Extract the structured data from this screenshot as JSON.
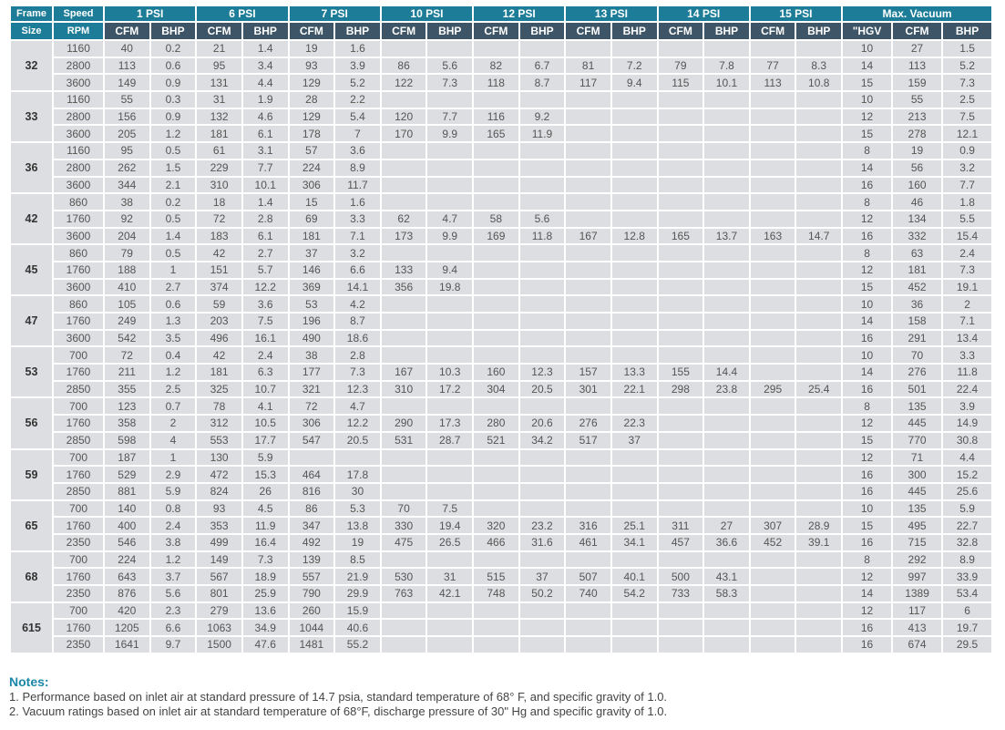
{
  "header": {
    "frame_label": "Frame",
    "frame_sub": "Size",
    "speed_label": "Speed",
    "speed_sub": "RPM",
    "pressure_groups": [
      "1 PSI",
      "6 PSI",
      "7 PSI",
      "10 PSI",
      "12 PSI",
      "13 PSI",
      "14 PSI",
      "15 PSI"
    ],
    "vacuum_group": "Max. Vacuum",
    "cfm": "CFM",
    "bhp": "BHP",
    "hgv": "\"HGV"
  },
  "groups": [
    {
      "frame": "32",
      "rows": [
        {
          "rpm": "1160",
          "cells": [
            "40",
            "0.2",
            "21",
            "1.4",
            "19",
            "1.6",
            "",
            "",
            "",
            "",
            "",
            "",
            "",
            "",
            "",
            "",
            "10",
            "27",
            "1.5"
          ]
        },
        {
          "rpm": "2800",
          "cells": [
            "113",
            "0.6",
            "95",
            "3.4",
            "93",
            "3.9",
            "86",
            "5.6",
            "82",
            "6.7",
            "81",
            "7.2",
            "79",
            "7.8",
            "77",
            "8.3",
            "14",
            "113",
            "5.2"
          ]
        },
        {
          "rpm": "3600",
          "cells": [
            "149",
            "0.9",
            "131",
            "4.4",
            "129",
            "5.2",
            "122",
            "7.3",
            "118",
            "8.7",
            "117",
            "9.4",
            "115",
            "10.1",
            "113",
            "10.8",
            "15",
            "159",
            "7.3"
          ]
        }
      ]
    },
    {
      "frame": "33",
      "rows": [
        {
          "rpm": "1160",
          "cells": [
            "55",
            "0.3",
            "31",
            "1.9",
            "28",
            "2.2",
            "",
            "",
            "",
            "",
            "",
            "",
            "",
            "",
            "",
            "",
            "10",
            "55",
            "2.5"
          ]
        },
        {
          "rpm": "2800",
          "cells": [
            "156",
            "0.9",
            "132",
            "4.6",
            "129",
            "5.4",
            "120",
            "7.7",
            "116",
            "9.2",
            "",
            "",
            "",
            "",
            "",
            "",
            "12",
            "213",
            "7.5"
          ]
        },
        {
          "rpm": "3600",
          "cells": [
            "205",
            "1.2",
            "181",
            "6.1",
            "178",
            "7",
            "170",
            "9.9",
            "165",
            "11.9",
            "",
            "",
            "",
            "",
            "",
            "",
            "15",
            "278",
            "12.1"
          ]
        }
      ]
    },
    {
      "frame": "36",
      "rows": [
        {
          "rpm": "1160",
          "cells": [
            "95",
            "0.5",
            "61",
            "3.1",
            "57",
            "3.6",
            "",
            "",
            "",
            "",
            "",
            "",
            "",
            "",
            "",
            "",
            "8",
            "19",
            "0.9"
          ]
        },
        {
          "rpm": "2800",
          "cells": [
            "262",
            "1.5",
            "229",
            "7.7",
            "224",
            "8.9",
            "",
            "",
            "",
            "",
            "",
            "",
            "",
            "",
            "",
            "",
            "14",
            "56",
            "3.2"
          ]
        },
        {
          "rpm": "3600",
          "cells": [
            "344",
            "2.1",
            "310",
            "10.1",
            "306",
            "11.7",
            "",
            "",
            "",
            "",
            "",
            "",
            "",
            "",
            "",
            "",
            "16",
            "160",
            "7.7"
          ]
        }
      ]
    },
    {
      "frame": "42",
      "rows": [
        {
          "rpm": "860",
          "cells": [
            "38",
            "0.2",
            "18",
            "1.4",
            "15",
            "1.6",
            "",
            "",
            "",
            "",
            "",
            "",
            "",
            "",
            "",
            "",
            "8",
            "46",
            "1.8"
          ]
        },
        {
          "rpm": "1760",
          "cells": [
            "92",
            "0.5",
            "72",
            "2.8",
            "69",
            "3.3",
            "62",
            "4.7",
            "58",
            "5.6",
            "",
            "",
            "",
            "",
            "",
            "",
            "12",
            "134",
            "5.5"
          ]
        },
        {
          "rpm": "3600",
          "cells": [
            "204",
            "1.4",
            "183",
            "6.1",
            "181",
            "7.1",
            "173",
            "9.9",
            "169",
            "11.8",
            "167",
            "12.8",
            "165",
            "13.7",
            "163",
            "14.7",
            "16",
            "332",
            "15.4"
          ]
        }
      ]
    },
    {
      "frame": "45",
      "rows": [
        {
          "rpm": "860",
          "cells": [
            "79",
            "0.5",
            "42",
            "2.7",
            "37",
            "3.2",
            "",
            "",
            "",
            "",
            "",
            "",
            "",
            "",
            "",
            "",
            "8",
            "63",
            "2.4"
          ]
        },
        {
          "rpm": "1760",
          "cells": [
            "188",
            "1",
            "151",
            "5.7",
            "146",
            "6.6",
            "133",
            "9.4",
            "",
            "",
            "",
            "",
            "",
            "",
            "",
            "",
            "12",
            "181",
            "7.3"
          ]
        },
        {
          "rpm": "3600",
          "cells": [
            "410",
            "2.7",
            "374",
            "12.2",
            "369",
            "14.1",
            "356",
            "19.8",
            "",
            "",
            "",
            "",
            "",
            "",
            "",
            "",
            "15",
            "452",
            "19.1"
          ]
        }
      ]
    },
    {
      "frame": "47",
      "rows": [
        {
          "rpm": "860",
          "cells": [
            "105",
            "0.6",
            "59",
            "3.6",
            "53",
            "4.2",
            "",
            "",
            "",
            "",
            "",
            "",
            "",
            "",
            "",
            "",
            "10",
            "36",
            "2"
          ]
        },
        {
          "rpm": "1760",
          "cells": [
            "249",
            "1.3",
            "203",
            "7.5",
            "196",
            "8.7",
            "",
            "",
            "",
            "",
            "",
            "",
            "",
            "",
            "",
            "",
            "14",
            "158",
            "7.1"
          ]
        },
        {
          "rpm": "3600",
          "cells": [
            "542",
            "3.5",
            "496",
            "16.1",
            "490",
            "18.6",
            "",
            "",
            "",
            "",
            "",
            "",
            "",
            "",
            "",
            "",
            "16",
            "291",
            "13.4"
          ]
        }
      ]
    },
    {
      "frame": "53",
      "rows": [
        {
          "rpm": "700",
          "cells": [
            "72",
            "0.4",
            "42",
            "2.4",
            "38",
            "2.8",
            "",
            "",
            "",
            "",
            "",
            "",
            "",
            "",
            "",
            "",
            "10",
            "70",
            "3.3"
          ]
        },
        {
          "rpm": "1760",
          "cells": [
            "211",
            "1.2",
            "181",
            "6.3",
            "177",
            "7.3",
            "167",
            "10.3",
            "160",
            "12.3",
            "157",
            "13.3",
            "155",
            "14.4",
            "",
            "",
            "14",
            "276",
            "11.8"
          ]
        },
        {
          "rpm": "2850",
          "cells": [
            "355",
            "2.5",
            "325",
            "10.7",
            "321",
            "12.3",
            "310",
            "17.2",
            "304",
            "20.5",
            "301",
            "22.1",
            "298",
            "23.8",
            "295",
            "25.4",
            "16",
            "501",
            "22.4"
          ]
        }
      ]
    },
    {
      "frame": "56",
      "rows": [
        {
          "rpm": "700",
          "cells": [
            "123",
            "0.7",
            "78",
            "4.1",
            "72",
            "4.7",
            "",
            "",
            "",
            "",
            "",
            "",
            "",
            "",
            "",
            "",
            "8",
            "135",
            "3.9"
          ]
        },
        {
          "rpm": "1760",
          "cells": [
            "358",
            "2",
            "312",
            "10.5",
            "306",
            "12.2",
            "290",
            "17.3",
            "280",
            "20.6",
            "276",
            "22.3",
            "",
            "",
            "",
            "",
            "12",
            "445",
            "14.9"
          ]
        },
        {
          "rpm": "2850",
          "cells": [
            "598",
            "4",
            "553",
            "17.7",
            "547",
            "20.5",
            "531",
            "28.7",
            "521",
            "34.2",
            "517",
            "37",
            "",
            "",
            "",
            "",
            "15",
            "770",
            "30.8"
          ]
        }
      ]
    },
    {
      "frame": "59",
      "rows": [
        {
          "rpm": "700",
          "cells": [
            "187",
            "1",
            "130",
            "5.9",
            "",
            "",
            "",
            "",
            "",
            "",
            "",
            "",
            "",
            "",
            "",
            "",
            "12",
            "71",
            "4.4"
          ]
        },
        {
          "rpm": "1760",
          "cells": [
            "529",
            "2.9",
            "472",
            "15.3",
            "464",
            "17.8",
            "",
            "",
            "",
            "",
            "",
            "",
            "",
            "",
            "",
            "",
            "16",
            "300",
            "15.2"
          ]
        },
        {
          "rpm": "2850",
          "cells": [
            "881",
            "5.9",
            "824",
            "26",
            "816",
            "30",
            "",
            "",
            "",
            "",
            "",
            "",
            "",
            "",
            "",
            "",
            "16",
            "445",
            "25.6"
          ]
        }
      ]
    },
    {
      "frame": "65",
      "rows": [
        {
          "rpm": "700",
          "cells": [
            "140",
            "0.8",
            "93",
            "4.5",
            "86",
            "5.3",
            "70",
            "7.5",
            "",
            "",
            "",
            "",
            "",
            "",
            "",
            "",
            "10",
            "135",
            "5.9"
          ]
        },
        {
          "rpm": "1760",
          "cells": [
            "400",
            "2.4",
            "353",
            "11.9",
            "347",
            "13.8",
            "330",
            "19.4",
            "320",
            "23.2",
            "316",
            "25.1",
            "311",
            "27",
            "307",
            "28.9",
            "15",
            "495",
            "22.7"
          ]
        },
        {
          "rpm": "2350",
          "cells": [
            "546",
            "3.8",
            "499",
            "16.4",
            "492",
            "19",
            "475",
            "26.5",
            "466",
            "31.6",
            "461",
            "34.1",
            "457",
            "36.6",
            "452",
            "39.1",
            "16",
            "715",
            "32.8"
          ]
        }
      ]
    },
    {
      "frame": "68",
      "rows": [
        {
          "rpm": "700",
          "cells": [
            "224",
            "1.2",
            "149",
            "7.3",
            "139",
            "8.5",
            "",
            "",
            "",
            "",
            "",
            "",
            "",
            "",
            "",
            "",
            "8",
            "292",
            "8.9"
          ]
        },
        {
          "rpm": "1760",
          "cells": [
            "643",
            "3.7",
            "567",
            "18.9",
            "557",
            "21.9",
            "530",
            "31",
            "515",
            "37",
            "507",
            "40.1",
            "500",
            "43.1",
            "",
            "",
            "12",
            "997",
            "33.9"
          ]
        },
        {
          "rpm": "2350",
          "cells": [
            "876",
            "5.6",
            "801",
            "25.9",
            "790",
            "29.9",
            "763",
            "42.1",
            "748",
            "50.2",
            "740",
            "54.2",
            "733",
            "58.3",
            "",
            "",
            "14",
            "1389",
            "53.4"
          ]
        }
      ]
    },
    {
      "frame": "615",
      "rows": [
        {
          "rpm": "700",
          "cells": [
            "420",
            "2.3",
            "279",
            "13.6",
            "260",
            "15.9",
            "",
            "",
            "",
            "",
            "",
            "",
            "",
            "",
            "",
            "",
            "12",
            "117",
            "6"
          ]
        },
        {
          "rpm": "1760",
          "cells": [
            "1205",
            "6.6",
            "1063",
            "34.9",
            "1044",
            "40.6",
            "",
            "",
            "",
            "",
            "",
            "",
            "",
            "",
            "",
            "",
            "16",
            "413",
            "19.7"
          ]
        },
        {
          "rpm": "2350",
          "cells": [
            "1641",
            "9.7",
            "1500",
            "47.6",
            "1481",
            "55.2",
            "",
            "",
            "",
            "",
            "",
            "",
            "",
            "",
            "",
            "",
            "16",
            "674",
            "29.5"
          ]
        }
      ]
    }
  ],
  "notes": {
    "title": "Notes:",
    "items": [
      "1.  Performance based on inlet air at standard pressure of 14.7 psia, standard temperature of 68° F, and specific gravity of 1.0.",
      "2.  Vacuum ratings based on inlet air at standard temperature of 68°F, discharge pressure of 30\" Hg and specific gravity of 1.0."
    ]
  },
  "colors": {
    "header_teal": "#1d7d99",
    "subheader_slate": "#3d5566",
    "cell_gray": "#dddee1",
    "notes_title": "#1a86a8"
  }
}
